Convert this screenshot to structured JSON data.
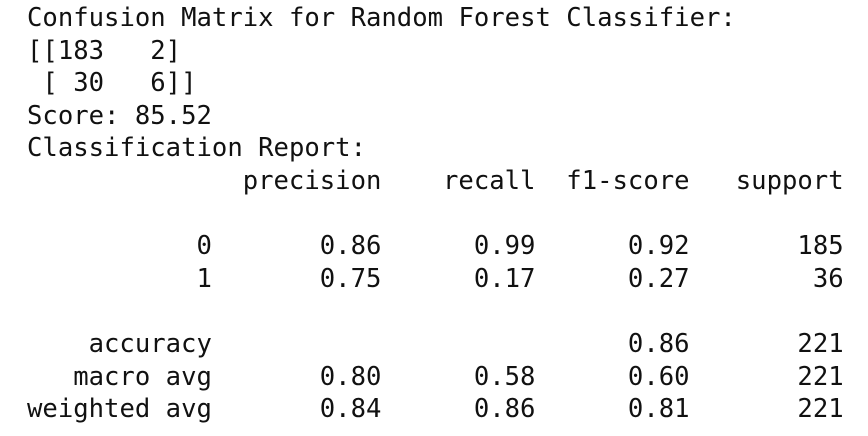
{
  "title": "Confusion Matrix for Random Forest Classifier:",
  "confusion_matrix_lines": [
    "[[183   2]",
    " [ 30   6]]"
  ],
  "score": {
    "label": "Score:",
    "value": 85.52
  },
  "report": {
    "title": "Classification Report:",
    "columns": [
      "precision",
      "recall",
      "f1-score",
      "support"
    ],
    "rows": [
      {
        "label": "0",
        "cells": [
          "0.86",
          "0.99",
          "0.92",
          "185"
        ]
      },
      {
        "label": "1",
        "cells": [
          "0.75",
          "0.17",
          "0.27",
          "36"
        ]
      },
      {
        "label": "accuracy",
        "cells": [
          null,
          null,
          "0.86",
          "221"
        ]
      },
      {
        "label": "macro avg",
        "cells": [
          "0.80",
          "0.58",
          "0.60",
          "221"
        ]
      },
      {
        "label": "weighted avg",
        "cells": [
          "0.84",
          "0.86",
          "0.81",
          "221"
        ]
      }
    ]
  }
}
